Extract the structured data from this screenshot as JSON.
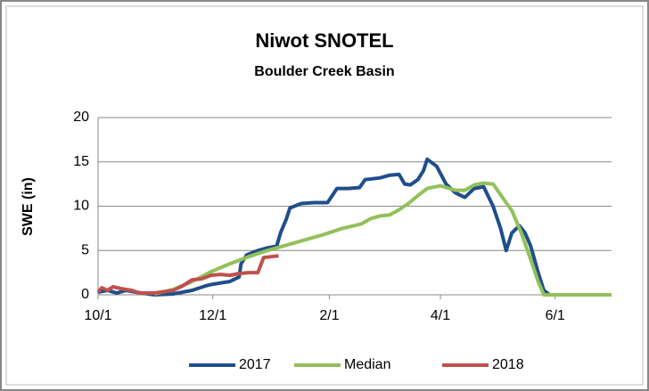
{
  "chart_data": {
    "type": "line",
    "title": "Niwot SNOTEL",
    "subtitle": "Boulder Creek Basin",
    "y_label": "SWE (in)",
    "xlim": [
      0,
      273
    ],
    "xticks": [
      {
        "value": 0,
        "label": "10/1"
      },
      {
        "value": 61,
        "label": "12/1"
      },
      {
        "value": 123,
        "label": "2/1"
      },
      {
        "value": 182,
        "label": "4/1"
      },
      {
        "value": 243,
        "label": "6/1"
      }
    ],
    "ylim": [
      0,
      20
    ],
    "yticks": [
      0,
      5,
      10,
      15,
      20
    ],
    "grid": true,
    "legend": "bottom",
    "series": [
      {
        "name": "2017",
        "color": "#1f4e8c",
        "x": [
          0,
          5,
          10,
          15,
          20,
          30,
          40,
          50,
          57,
          61,
          70,
          75,
          76,
          79,
          85,
          90,
          95,
          97,
          100,
          102,
          108,
          115,
          122,
          127,
          133,
          139,
          142,
          150,
          155,
          160,
          163,
          166,
          170,
          173,
          175,
          180,
          185,
          190,
          195,
          200,
          205,
          210,
          214,
          217,
          220,
          224,
          227,
          230,
          234,
          237,
          240,
          273
        ],
        "values": [
          0.3,
          0.5,
          0.2,
          0.5,
          0.3,
          0,
          0.1,
          0.5,
          1.0,
          1.2,
          1.5,
          2.0,
          3.5,
          4.5,
          5.0,
          5.3,
          5.5,
          7.0,
          8.5,
          9.8,
          10.3,
          10.4,
          10.4,
          12.0,
          12.0,
          12.1,
          13.0,
          13.2,
          13.5,
          13.6,
          12.5,
          12.4,
          13.0,
          14.0,
          15.3,
          14.5,
          12.5,
          11.5,
          11.0,
          12.0,
          12.2,
          10.0,
          7.5,
          5.0,
          7.0,
          7.8,
          7.0,
          5.5,
          2.5,
          0.5,
          0,
          0
        ]
      },
      {
        "name": "Median",
        "color": "#92c05a",
        "x": [
          30,
          40,
          50,
          60,
          70,
          80,
          90,
          100,
          110,
          120,
          130,
          140,
          145,
          150,
          155,
          160,
          165,
          170,
          175,
          182,
          190,
          195,
          200,
          205,
          210,
          215,
          220,
          225,
          230,
          234,
          237,
          273
        ],
        "values": [
          0.1,
          0.6,
          1.5,
          2.6,
          3.5,
          4.3,
          5.0,
          5.6,
          6.2,
          6.8,
          7.5,
          8.0,
          8.6,
          8.9,
          9.0,
          9.6,
          10.3,
          11.2,
          12.0,
          12.3,
          11.8,
          11.8,
          12.4,
          12.6,
          12.5,
          11.0,
          9.5,
          7.0,
          4.0,
          1.5,
          0,
          0
        ]
      },
      {
        "name": "2018",
        "color": "#c0504d",
        "x": [
          0,
          2,
          5,
          8,
          12,
          18,
          22,
          30,
          40,
          45,
          50,
          55,
          60,
          65,
          70,
          75,
          80,
          85,
          88,
          92,
          96
        ],
        "values": [
          0.3,
          0.8,
          0.5,
          0.9,
          0.7,
          0.5,
          0.2,
          0.2,
          0.5,
          1.0,
          1.7,
          1.8,
          2.2,
          2.3,
          2.2,
          2.4,
          2.5,
          2.5,
          4.2,
          4.3,
          4.4
        ]
      }
    ]
  }
}
